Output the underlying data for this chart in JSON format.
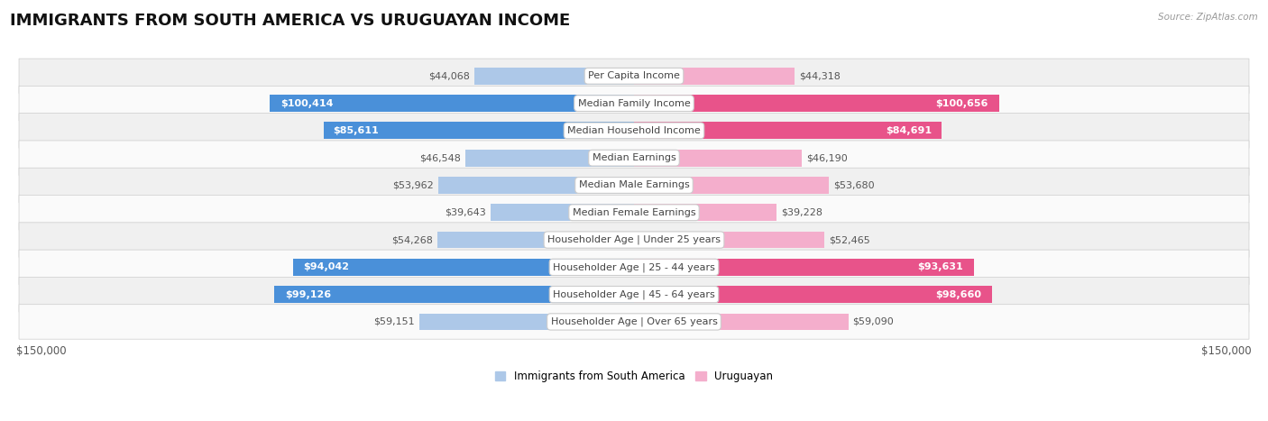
{
  "title": "IMMIGRANTS FROM SOUTH AMERICA VS URUGUAYAN INCOME",
  "source": "Source: ZipAtlas.com",
  "categories": [
    "Per Capita Income",
    "Median Family Income",
    "Median Household Income",
    "Median Earnings",
    "Median Male Earnings",
    "Median Female Earnings",
    "Householder Age | Under 25 years",
    "Householder Age | 25 - 44 years",
    "Householder Age | 45 - 64 years",
    "Householder Age | Over 65 years"
  ],
  "left_values": [
    44068,
    100414,
    85611,
    46548,
    53962,
    39643,
    54268,
    94042,
    99126,
    59151
  ],
  "right_values": [
    44318,
    100656,
    84691,
    46190,
    53680,
    39228,
    52465,
    93631,
    98660,
    59090
  ],
  "left_labels": [
    "$44,068",
    "$100,414",
    "$85,611",
    "$46,548",
    "$53,962",
    "$39,643",
    "$54,268",
    "$94,042",
    "$99,126",
    "$59,151"
  ],
  "right_labels": [
    "$44,318",
    "$100,656",
    "$84,691",
    "$46,190",
    "$53,680",
    "$39,228",
    "$52,465",
    "$93,631",
    "$98,660",
    "$59,090"
  ],
  "max_value": 150000,
  "left_color_light": "#adc8e8",
  "left_color_dark": "#4a90d9",
  "right_color_light": "#f4aecc",
  "right_color_dark": "#e8538a",
  "inside_threshold": 60000,
  "background_color": "#ffffff",
  "row_bg_odd": "#f0f0f0",
  "row_bg_even": "#fafafa",
  "legend_left": "Immigrants from South America",
  "legend_right": "Uruguayan",
  "title_fontsize": 13,
  "label_fontsize": 8,
  "category_fontsize": 8,
  "legend_fontsize": 8.5,
  "x_label_left": "$150,000",
  "x_label_right": "$150,000"
}
